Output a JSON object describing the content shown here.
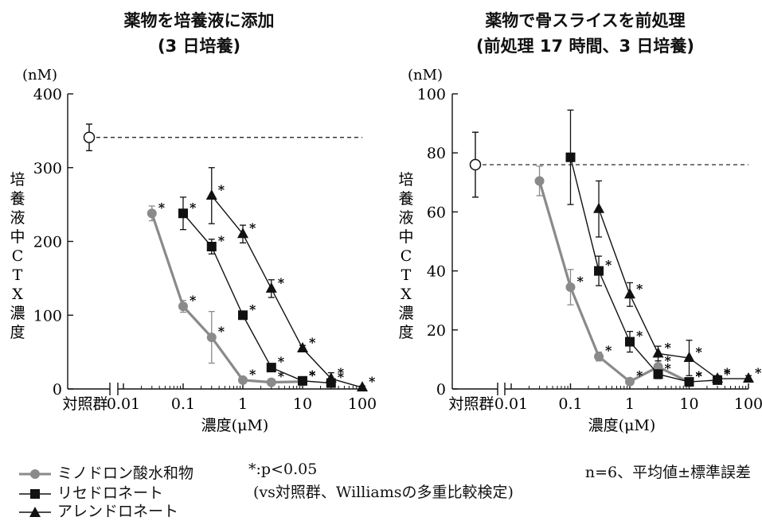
{
  "colors": {
    "mino": "#8a8a8a",
    "rise": "#111111",
    "alen": "#111111",
    "control": "#ffffff",
    "axis": "#111111"
  },
  "shared": {
    "unit_label": "(nM)",
    "ylabel": "培養液中CTX濃度",
    "xlabel": "濃度(μM)",
    "control_label": "対照群",
    "x_ticks": [
      "0.01",
      "0.1",
      "1",
      "10",
      "100"
    ],
    "sig_mark": "*"
  },
  "legend": {
    "items": [
      {
        "label": "ミノドロン酸水和物",
        "marker": "circle",
        "color": "#8a8a8a"
      },
      {
        "label": "リセドロネート",
        "marker": "square",
        "color": "#111111"
      },
      {
        "label": "アレンドロネート",
        "marker": "triangle",
        "color": "#111111"
      }
    ],
    "sig_note": "*:p<0.05",
    "sig_note2": "(vs対照群、Williamsの多重比較検定)",
    "n_note": "n=6、平均値±標準誤差"
  },
  "chart_data": [
    {
      "type": "line",
      "title": "薬物を培養液に添加",
      "subtitle": "(3 日培養)",
      "ylim": [
        0,
        400
      ],
      "y_ticks": [
        0,
        100,
        200,
        300,
        400
      ],
      "x_scale": "log",
      "xlim": [
        0.01,
        100
      ],
      "control": {
        "value": 341,
        "err": 18
      },
      "series": [
        {
          "name": "ミノドロン酸水和物",
          "marker": "circle",
          "color": "#8a8a8a",
          "points": [
            {
              "x": 0.03,
              "y": 238,
              "err": 10,
              "sig": true
            },
            {
              "x": 0.1,
              "y": 112,
              "err": 8,
              "sig": true
            },
            {
              "x": 0.3,
              "y": 70,
              "err": 35,
              "sig": true
            },
            {
              "x": 1,
              "y": 12,
              "err": 3,
              "sig": true
            },
            {
              "x": 3,
              "y": 9,
              "err": 2,
              "sig": true
            },
            {
              "x": 10,
              "y": 10,
              "err": 2,
              "sig": true
            }
          ]
        },
        {
          "name": "リセドロネート",
          "marker": "square",
          "color": "#111111",
          "points": [
            {
              "x": 0.1,
              "y": 238,
              "err": 22,
              "sig": true
            },
            {
              "x": 0.3,
              "y": 193,
              "err": 10,
              "sig": true
            },
            {
              "x": 1,
              "y": 100,
              "err": 5,
              "sig": true
            },
            {
              "x": 3,
              "y": 29,
              "err": 4,
              "sig": true
            },
            {
              "x": 10,
              "y": 11,
              "err": 3,
              "sig": true
            },
            {
              "x": 30,
              "y": 8,
              "err": 4,
              "sig": true
            }
          ]
        },
        {
          "name": "アレンドロネート",
          "marker": "triangle",
          "color": "#111111",
          "points": [
            {
              "x": 0.3,
              "y": 262,
              "err": 38,
              "sig": true
            },
            {
              "x": 1,
              "y": 210,
              "err": 12,
              "sig": true
            },
            {
              "x": 3,
              "y": 136,
              "err": 12,
              "sig": true
            },
            {
              "x": 10,
              "y": 55,
              "err": 4,
              "sig": true
            },
            {
              "x": 30,
              "y": 14,
              "err": 8,
              "sig": true
            },
            {
              "x": 100,
              "y": 2,
              "err": 2,
              "sig": true
            }
          ]
        }
      ]
    },
    {
      "type": "line",
      "title": "薬物で骨スライスを前処理",
      "subtitle": "(前処理 17 時間、3 日培養)",
      "ylim": [
        0,
        100
      ],
      "y_ticks": [
        0,
        20,
        40,
        60,
        80,
        100
      ],
      "x_scale": "log",
      "xlim": [
        0.01,
        100
      ],
      "control": {
        "value": 76,
        "err": 11
      },
      "series": [
        {
          "name": "ミノドロン酸水和物",
          "marker": "circle",
          "color": "#8a8a8a",
          "points": [
            {
              "x": 0.03,
              "y": 70.5,
              "err": 5,
              "sig": false
            },
            {
              "x": 0.1,
              "y": 34.5,
              "err": 6,
              "sig": true
            },
            {
              "x": 0.3,
              "y": 11,
              "err": 1.5,
              "sig": true
            },
            {
              "x": 1,
              "y": 2.5,
              "err": 1,
              "sig": true
            },
            {
              "x": 3,
              "y": 7.5,
              "err": 2,
              "sig": true
            },
            {
              "x": 10,
              "y": 2.3,
              "err": 0.8,
              "sig": true
            }
          ]
        },
        {
          "name": "リセドロネート",
          "marker": "square",
          "color": "#111111",
          "points": [
            {
              "x": 0.1,
              "y": 78.5,
              "err": 16,
              "sig": false
            },
            {
              "x": 0.3,
              "y": 40,
              "err": 5,
              "sig": true
            },
            {
              "x": 1,
              "y": 16,
              "err": 3.5,
              "sig": true
            },
            {
              "x": 3,
              "y": 5,
              "err": 1.5,
              "sig": true
            },
            {
              "x": 10,
              "y": 2.4,
              "err": 0.8,
              "sig": true
            },
            {
              "x": 30,
              "y": 3,
              "err": 0.8,
              "sig": true
            }
          ]
        },
        {
          "name": "アレンドロネート",
          "marker": "triangle",
          "color": "#111111",
          "points": [
            {
              "x": 0.3,
              "y": 61,
              "err": 9.5,
              "sig": false
            },
            {
              "x": 1,
              "y": 32,
              "err": 4,
              "sig": true
            },
            {
              "x": 3,
              "y": 12,
              "err": 2.5,
              "sig": true
            },
            {
              "x": 10,
              "y": 10.5,
              "err": 6,
              "sig": true
            },
            {
              "x": 30,
              "y": 3.5,
              "err": 1,
              "sig": true
            },
            {
              "x": 100,
              "y": 3.5,
              "err": 1,
              "sig": true
            }
          ]
        }
      ]
    }
  ]
}
